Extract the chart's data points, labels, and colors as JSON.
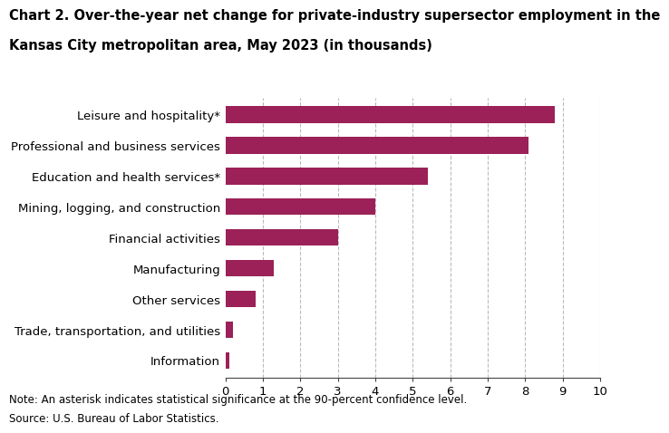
{
  "title_line1": "Chart 2. Over-the-year net change for private-industry supersector employment in the",
  "title_line2": "Kansas City metropolitan area, May 2023 (in thousands)",
  "categories": [
    "Information",
    "Trade, transportation, and utilities",
    "Other services",
    "Manufacturing",
    "Financial activities",
    "Mining, logging, and construction",
    "Education and health services*",
    "Professional and business services",
    "Leisure and hospitality*"
  ],
  "values": [
    0.1,
    0.2,
    0.8,
    1.3,
    3.0,
    4.0,
    5.4,
    8.1,
    8.8
  ],
  "bar_color": "#9b2158",
  "xlim": [
    0,
    10
  ],
  "xticks": [
    0,
    1,
    2,
    3,
    4,
    5,
    6,
    7,
    8,
    9,
    10
  ],
  "grid_color": "#bbbbbb",
  "bg_color": "#ffffff",
  "note_line1": "Note: An asterisk indicates statistical significance at the 90-percent confidence level.",
  "note_line2": "Source: U.S. Bureau of Labor Statistics.",
  "title_fontsize": 10.5,
  "label_fontsize": 9.5,
  "tick_fontsize": 9.5,
  "note_fontsize": 8.5,
  "bar_height": 0.55
}
